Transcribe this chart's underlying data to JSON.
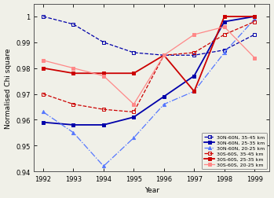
{
  "years": [
    1992,
    1993,
    1994,
    1995,
    1996,
    1997,
    1998,
    1999
  ],
  "series": [
    {
      "label": "30N-60N, 35-45 km",
      "color": "#0000aa",
      "linestyle": "--",
      "marker": "s",
      "markersize": 2.5,
      "linewidth": 0.9,
      "markerfacecolor": "none",
      "values": [
        1.0,
        0.997,
        0.99,
        0.986,
        0.985,
        0.985,
        0.987,
        0.993
      ]
    },
    {
      "label": "30N-60N, 25-35 km",
      "color": "#0000aa",
      "linestyle": "-",
      "marker": "s",
      "markersize": 2.5,
      "linewidth": 1.3,
      "markerfacecolor": "#0000aa",
      "values": [
        0.959,
        0.958,
        0.958,
        0.961,
        0.969,
        0.977,
        0.998,
        1.0
      ]
    },
    {
      "label": "30N-60N, 20-25 km",
      "color": "#5577ff",
      "linestyle": "-.",
      "marker": "^",
      "markersize": 3,
      "linewidth": 0.9,
      "markerfacecolor": "#5577ff",
      "values": [
        0.963,
        0.955,
        0.942,
        0.953,
        0.966,
        0.971,
        0.986,
        0.999
      ]
    },
    {
      "label": "30S-60S, 35-45 km",
      "color": "#cc0000",
      "linestyle": "--",
      "marker": "s",
      "markersize": 2.5,
      "linewidth": 0.9,
      "markerfacecolor": "none",
      "values": [
        0.97,
        0.966,
        0.964,
        0.963,
        0.985,
        0.986,
        0.993,
        0.998
      ]
    },
    {
      "label": "30S-60S, 25-35 km",
      "color": "#cc0000",
      "linestyle": "-",
      "marker": "s",
      "markersize": 2.5,
      "linewidth": 1.3,
      "markerfacecolor": "#cc0000",
      "values": [
        0.98,
        0.978,
        0.978,
        0.978,
        0.985,
        0.971,
        1.0,
        1.0
      ]
    },
    {
      "label": "30S-60S, 20-25 km",
      "color": "#ff8888",
      "linestyle": "-",
      "marker": "s",
      "markersize": 2.5,
      "linewidth": 0.9,
      "markerfacecolor": "#ff8888",
      "values": [
        0.983,
        0.98,
        0.977,
        0.966,
        0.985,
        0.993,
        0.996,
        0.984
      ]
    }
  ],
  "xlabel": "Year",
  "ylabel": "Normalised Chi square",
  "ylim": [
    0.94,
    1.005
  ],
  "xlim": [
    1991.7,
    1999.5
  ],
  "yticks": [
    0.94,
    0.95,
    0.96,
    0.97,
    0.98,
    0.99,
    1.0
  ],
  "xticks": [
    1992,
    1993,
    1994,
    1995,
    1996,
    1997,
    1998,
    1999
  ],
  "legend_loc": "lower right",
  "background_color": "#f0f0e8"
}
